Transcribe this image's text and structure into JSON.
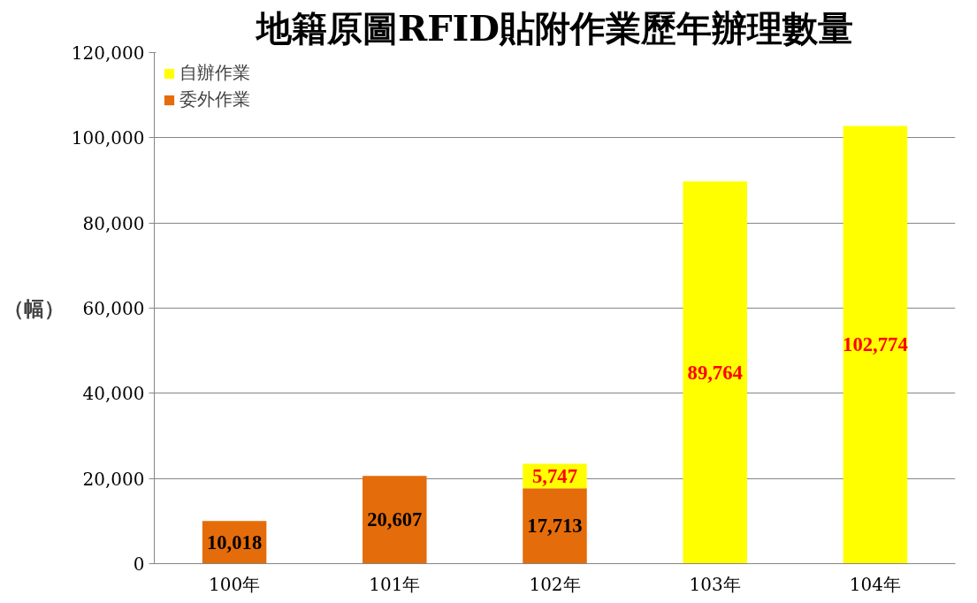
{
  "chart_data": {
    "type": "bar",
    "title": "地籍原圖RFID貼附作業歷年辦理數量",
    "ylabel": "（幅）",
    "stacked": true,
    "categories": [
      "100年",
      "101年",
      "102年",
      "103年",
      "104年"
    ],
    "series": [
      {
        "name": "委外作業",
        "color": "#e46c0a",
        "values": [
          10018,
          20607,
          17713,
          null,
          null
        ],
        "value_labels": [
          "10,018",
          "20,607",
          "17,713",
          null,
          null
        ]
      },
      {
        "name": "自辦作業",
        "color": "#ffff00",
        "values": [
          null,
          null,
          5747,
          89764,
          102774
        ],
        "value_labels": [
          null,
          null,
          "5,747",
          "89,764",
          "102,774"
        ]
      }
    ],
    "ylim": [
      0,
      120000
    ],
    "yticks": [
      {
        "value": 0,
        "label": "0"
      },
      {
        "value": 20000,
        "label": "20,000"
      },
      {
        "value": 40000,
        "label": "40,000"
      },
      {
        "value": 60000,
        "label": "60,000"
      },
      {
        "value": 80000,
        "label": "80,000"
      },
      {
        "value": 100000,
        "label": "100,000"
      },
      {
        "value": 120000,
        "label": "120,000"
      }
    ],
    "grid": "y",
    "legend": "top left"
  }
}
